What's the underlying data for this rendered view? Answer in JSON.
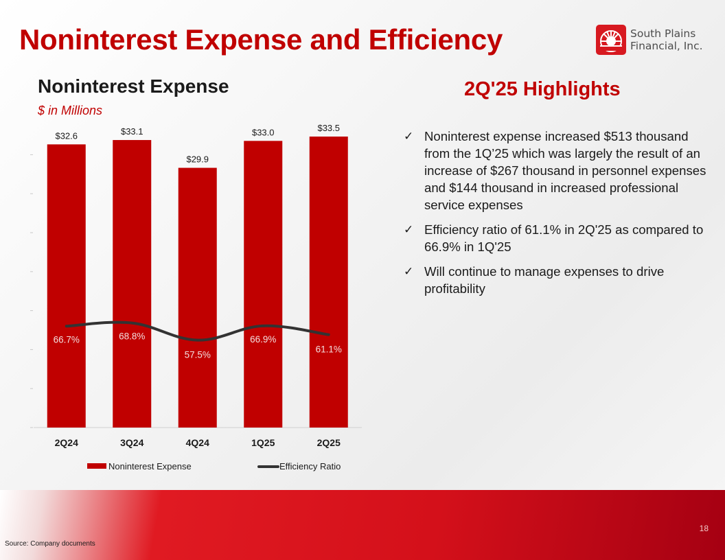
{
  "slide": {
    "title": "Noninterest Expense and Efficiency",
    "page_number": "18",
    "source": "Source: Company documents"
  },
  "logo": {
    "line1": "South Plains",
    "line2": "Financial, Inc.",
    "icon": "sunburst-logo-icon",
    "color": "#d71920"
  },
  "highlights": {
    "title": "2Q'25 Highlights",
    "check_glyph": "✓",
    "items": [
      "Noninterest expense increased $513 thousand from the 1Q’25 which was largely the result of an increase of $267 thousand in personnel expenses and $144 thousand in increased professional service expenses",
      "Efficiency ratio of 61.1% in 2Q'25 as compared to 66.9% in 1Q'25",
      "Will continue to manage expenses to drive profitability"
    ]
  },
  "colors": {
    "title_red": "#c00000",
    "bar_red": "#c00000",
    "line_dark": "#333333"
  },
  "chart_data": {
    "type": "bar",
    "title": "Noninterest Expense",
    "subtitle": "$ in Millions",
    "categories": [
      "2Q24",
      "3Q24",
      "4Q24",
      "1Q25",
      "2Q25"
    ],
    "series": [
      {
        "name": "Noninterest Expense",
        "type": "bar",
        "axis": "left",
        "values": [
          32.6,
          33.1,
          29.9,
          33.0,
          33.5
        ],
        "labels": [
          "$32.6",
          "$33.1",
          "$29.9",
          "$33.0",
          "$33.5"
        ]
      },
      {
        "name": "Efficiency Ratio",
        "type": "line",
        "axis": "right",
        "values": [
          66.7,
          68.8,
          57.5,
          66.9,
          61.1
        ],
        "labels": [
          "66.7%",
          "68.8%",
          "57.5%",
          "66.9%",
          "61.1%"
        ]
      }
    ],
    "ylim_left": [
      0,
      35
    ],
    "ylim_right": [
      0,
      200
    ],
    "legend": "bottom",
    "grid": false
  }
}
